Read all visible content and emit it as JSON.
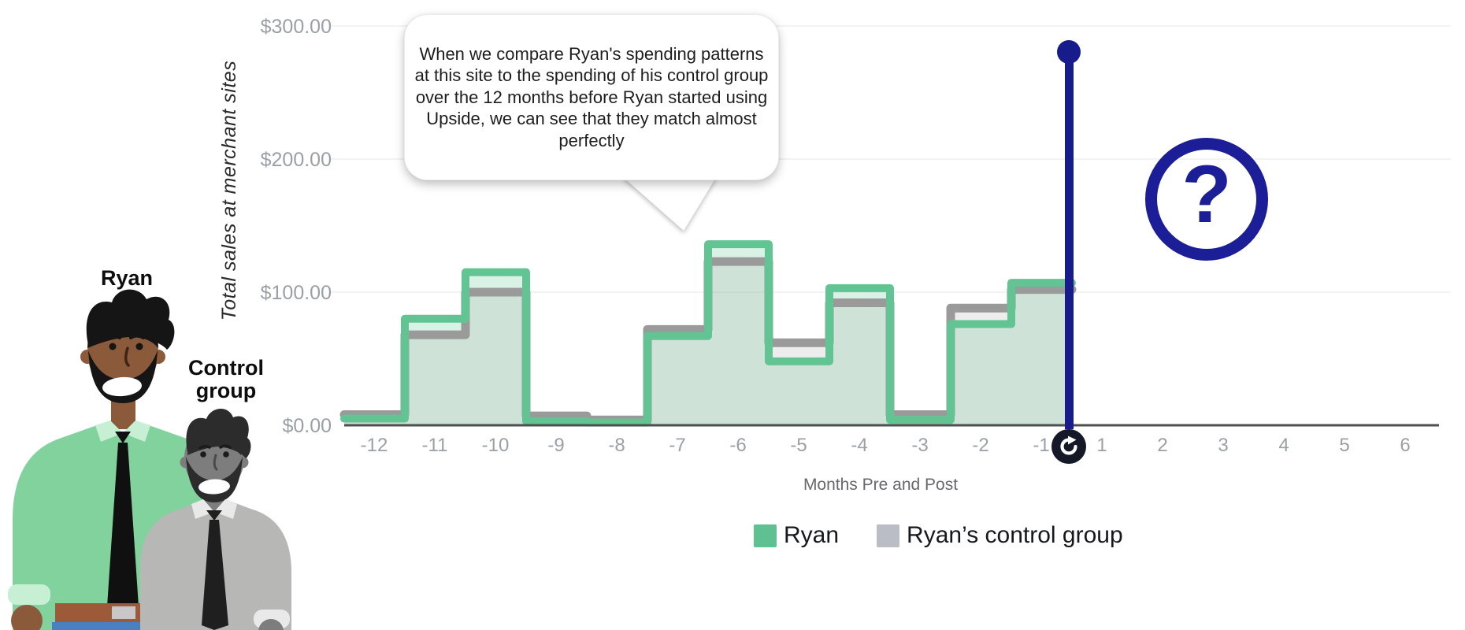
{
  "y_axis": {
    "title": "Total sales at merchant sites",
    "ticks": [
      {
        "label": "$300.00",
        "value": 300
      },
      {
        "label": "$200.00",
        "value": 200
      },
      {
        "label": "$100.00",
        "value": 100
      },
      {
        "label": "$0.00",
        "value": 0
      }
    ]
  },
  "x_axis": {
    "title": "Months Pre and Post",
    "pre_labels": [
      "-12",
      "-11",
      "-10",
      "-9",
      "-8",
      "-7",
      "-6",
      "-5",
      "-4",
      "-3",
      "-2",
      "-1"
    ],
    "post_labels": [
      "1",
      "2",
      "3",
      "4",
      "5",
      "6"
    ]
  },
  "speech_bubble": {
    "text": "When we compare Ryan's spending patterns at this site to the spending of his control group over the 12 months before Ryan started using Upside, we can see that they match almost perfectly"
  },
  "characters": {
    "ryan_label": "Ryan",
    "control_label": "Control\ngroup"
  },
  "legend": {
    "items": [
      {
        "label": "Ryan",
        "color": "#5fc091"
      },
      {
        "label": "Ryan’s control group",
        "color": "#babcc6"
      }
    ]
  },
  "icons": {
    "event_marker_top": "dot-icon",
    "event_marker_bottom": "refresh-icon",
    "help": "question-mark-icon",
    "help_glyph": "?"
  },
  "colors": {
    "navy": "#171b8c",
    "badge": "#141827",
    "axis_line": "#4f4f4f",
    "tick_text": "#9aa0a6",
    "gridline": "#f3f3f3"
  },
  "chart_data": {
    "type": "area",
    "subtype": "step",
    "title": "",
    "xlabel": "Months Pre and Post",
    "ylabel": "Total sales at merchant sites",
    "x": [
      -12,
      -11,
      -10,
      -9,
      -8,
      -7,
      -6,
      -5,
      -4,
      -3,
      -2,
      -1
    ],
    "series": [
      {
        "name": "Ryan",
        "color": "#63c493",
        "fill": "rgba(102,199,148,0.24)",
        "stroke_width": 10,
        "values": [
          5,
          80,
          115,
          3,
          2,
          67,
          136,
          48,
          103,
          4,
          76,
          107
        ]
      },
      {
        "name": "Ryan’s control group",
        "color": "#9a9a9a",
        "fill": "rgba(154,154,154,0.18)",
        "stroke_width": 11,
        "values": [
          8,
          68,
          100,
          7,
          4,
          72,
          123,
          62,
          92,
          8,
          88,
          102
        ]
      }
    ],
    "ylim": [
      0,
      300
    ],
    "grid": "horizontal",
    "legend_position": "bottom",
    "event_marker": {
      "position_month": 0,
      "description": "vertical navy line with filled dot at top and dark refresh badge on the axis; months 1-6 after the marker have no data"
    }
  }
}
